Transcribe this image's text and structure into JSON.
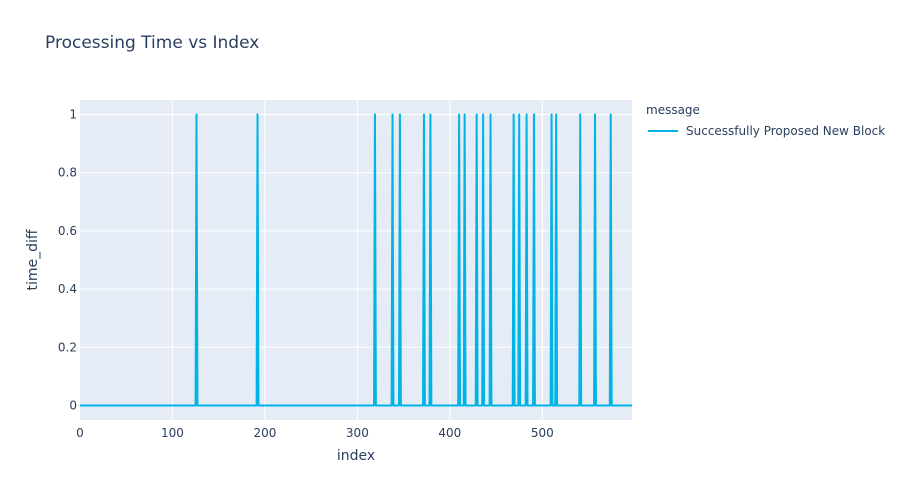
{
  "chart_data": {
    "type": "line",
    "title": "Processing Time vs Index",
    "xlabel": "index",
    "ylabel": "time_diff",
    "xlim": [
      0,
      597
    ],
    "ylim": [
      -0.05,
      1.05
    ],
    "x_ticks": [
      0,
      100,
      200,
      300,
      400,
      500
    ],
    "y_ticks": [
      0,
      0.2,
      0.4,
      0.6,
      0.8,
      1
    ],
    "y_tick_labels": [
      "0",
      "0.2",
      "0.4",
      "0.6",
      "0.8",
      "1"
    ],
    "grid": true,
    "legend": {
      "title": "message",
      "placement": "right"
    },
    "series": [
      {
        "name": "Successfully Proposed New Block",
        "color": "#00b4e6",
        "x_max": 597,
        "baseline": 0,
        "spike_indices": [
          126,
          192,
          319,
          338,
          346,
          372,
          379,
          410,
          416,
          429,
          436,
          444,
          469,
          475,
          483,
          491,
          510,
          515,
          541,
          557,
          574
        ],
        "spike_value": 1
      }
    ]
  }
}
